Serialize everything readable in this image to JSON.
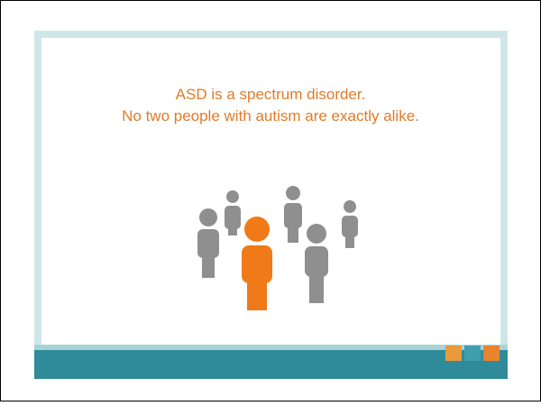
{
  "slide": {
    "lines": [
      "ASD is a spectrum disorder.",
      "No two people with autism are exactly alike."
    ]
  }
}
